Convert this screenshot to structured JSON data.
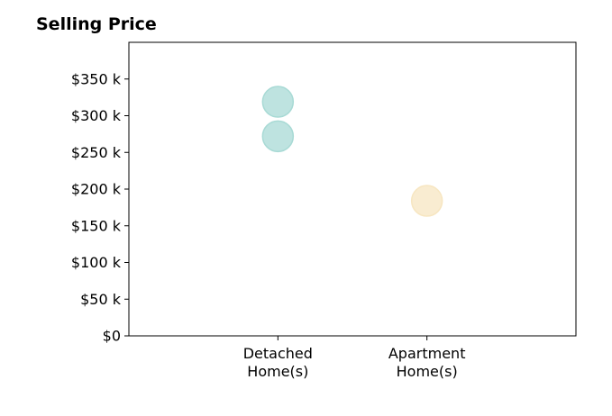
{
  "chart_data": {
    "type": "scatter",
    "title": "Selling Price",
    "xlabel": "",
    "ylabel": "",
    "categories": [
      [
        "Detached",
        "Home(s)"
      ],
      [
        "Apartment",
        "Home(s)"
      ]
    ],
    "xlim": [
      0,
      3
    ],
    "ylim": [
      0,
      400000
    ],
    "yticks": [
      {
        "value": 0,
        "label": "$0"
      },
      {
        "value": 50000,
        "label": "$50 k"
      },
      {
        "value": 100000,
        "label": "$100 k"
      },
      {
        "value": 150000,
        "label": "$150 k"
      },
      {
        "value": 200000,
        "label": "$200 k"
      },
      {
        "value": 250000,
        "label": "$250 k"
      },
      {
        "value": 300000,
        "label": "$300 k"
      },
      {
        "value": 350000,
        "label": "$350 k"
      }
    ],
    "points": [
      {
        "x": 1,
        "y": 319000,
        "color": "#a8dad5"
      },
      {
        "x": 1,
        "y": 272000,
        "color": "#a8dad5"
      },
      {
        "x": 2,
        "y": 184000,
        "color": "#f7e6c1"
      }
    ],
    "grid": false,
    "legend": "none"
  }
}
